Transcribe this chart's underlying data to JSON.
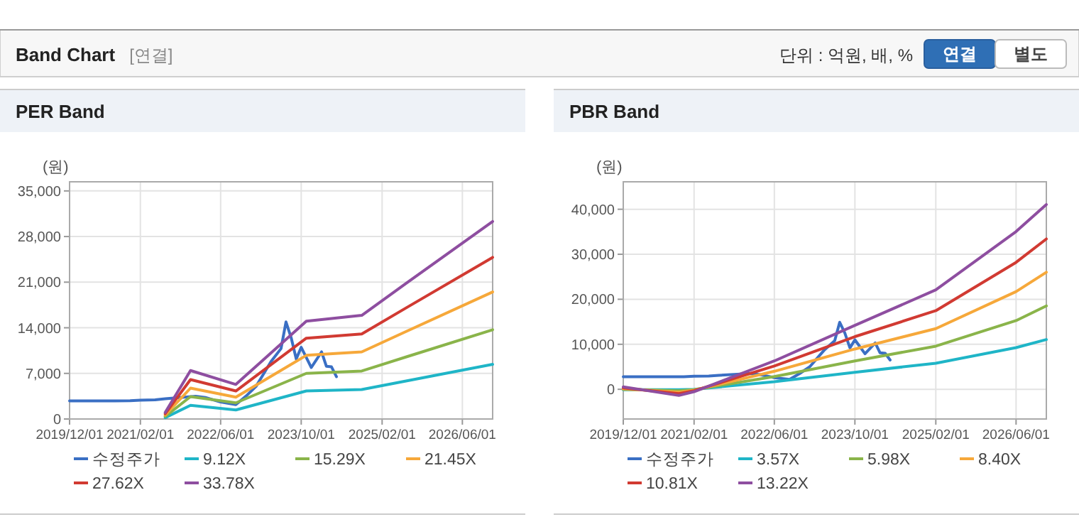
{
  "chart_data": [
    {
      "type": "other",
      "title": "Band Chart",
      "annotations": [
        "[연결]",
        "단위 : 억원, 배, %",
        "연결",
        "별도"
      ]
    },
    {
      "type": "line",
      "title": "PER Band",
      "ylabel": "(원)",
      "xlim": [
        "2019-12-01",
        "2026-12-01"
      ],
      "ylim": [
        0,
        36400
      ],
      "xticks": [
        {
          "value": "2019-12-01",
          "label": "2019/12/01"
        },
        {
          "value": "2021-02-01",
          "label": "2021/02/01"
        },
        {
          "value": "2022-06-01",
          "label": "2022/06/01"
        },
        {
          "value": "2023-10-01",
          "label": "2023/10/01"
        },
        {
          "value": "2025-02-01",
          "label": "2025/02/01"
        },
        {
          "value": "2026-06-01",
          "label": "2026/06/01"
        }
      ],
      "yticks": [
        0,
        {
          "value": 7000,
          "label": "7,000"
        },
        {
          "value": 14000,
          "label": "14,000"
        },
        {
          "value": 21000,
          "label": "21,000"
        },
        {
          "value": 28000,
          "label": "28,000"
        },
        {
          "value": 35000,
          "label": "35,000"
        }
      ],
      "grid": true,
      "legend": "bottom",
      "series": [
        {
          "name": "수정주가",
          "color": "#3a6fc4",
          "x": [
            "2019-12-01",
            "2020-03-01",
            "2020-06-01",
            "2020-09-01",
            "2020-12-01",
            "2021-02-01",
            "2021-05-01",
            "2021-07-01",
            "2021-10-01",
            "2022-01-01",
            "2022-03-01",
            "2022-06-01",
            "2022-09-01",
            "2022-11-01",
            "2023-01-01",
            "2023-03-01",
            "2023-04-01",
            "2023-06-01",
            "2023-07-01",
            "2023-08-01",
            "2023-09-01",
            "2023-10-01",
            "2023-12-01",
            "2024-02-01",
            "2024-03-01",
            "2024-04-01",
            "2024-05-01"
          ],
          "values": [
            2770,
            2770,
            2770,
            2780,
            2800,
            2900,
            2950,
            3100,
            3300,
            3500,
            3300,
            2600,
            2200,
            3500,
            5000,
            7500,
            8800,
            10800,
            14900,
            12500,
            9200,
            11000,
            7900,
            10300,
            8100,
            8000,
            6500
          ]
        },
        {
          "name": "9.12X",
          "color": "#1fb5c7",
          "x": [
            "2021-07-01",
            "2021-12-01",
            "2022-09-01",
            "2023-11-01",
            "2024-10-01",
            "2025-07-01",
            "2026-12-01"
          ],
          "values": [
            200,
            2100,
            1390,
            4300,
            4520,
            5860,
            8390
          ]
        },
        {
          "name": "15.29X",
          "color": "#8ab44a",
          "x": [
            "2021-07-01",
            "2021-12-01",
            "2022-09-01",
            "2023-11-01",
            "2024-10-01",
            "2025-07-01",
            "2026-12-01"
          ],
          "values": [
            400,
            3430,
            2480,
            7000,
            7370,
            9560,
            13700
          ]
        },
        {
          "name": "21.45X",
          "color": "#f6a83a",
          "x": [
            "2021-07-01",
            "2021-12-01",
            "2022-09-01",
            "2023-11-01",
            "2024-10-01",
            "2025-07-01",
            "2026-12-01"
          ],
          "values": [
            600,
            4740,
            3350,
            9770,
            10300,
            13480,
            19500
          ]
        },
        {
          "name": "27.62X",
          "color": "#d13a32",
          "x": [
            "2021-07-01",
            "2021-12-01",
            "2022-09-01",
            "2023-11-01",
            "2024-10-01",
            "2025-07-01",
            "2026-12-01"
          ],
          "values": [
            800,
            6050,
            4300,
            12400,
            13050,
            17120,
            24800
          ]
        },
        {
          "name": "33.78X",
          "color": "#8e4ea0",
          "x": [
            "2021-07-01",
            "2021-12-01",
            "2022-09-01",
            "2023-11-01",
            "2024-10-01",
            "2025-07-01",
            "2026-12-01"
          ],
          "values": [
            1000,
            7440,
            5300,
            15000,
            15900,
            20900,
            30300
          ]
        }
      ]
    },
    {
      "type": "line",
      "title": "PBR Band",
      "ylabel": "(원)",
      "xlim": [
        "2019-12-01",
        "2026-12-01"
      ],
      "ylim": [
        -6600,
        46100
      ],
      "xticks": [
        {
          "value": "2019-12-01",
          "label": "2019/12/01"
        },
        {
          "value": "2021-02-01",
          "label": "2021/02/01"
        },
        {
          "value": "2022-06-01",
          "label": "2022/06/01"
        },
        {
          "value": "2023-10-01",
          "label": "2023/10/01"
        },
        {
          "value": "2025-02-01",
          "label": "2025/02/01"
        },
        {
          "value": "2026-06-01",
          "label": "2026/06/01"
        }
      ],
      "yticks": [
        0,
        {
          "value": 10000,
          "label": "10,000"
        },
        {
          "value": 20000,
          "label": "20,000"
        },
        {
          "value": 30000,
          "label": "30,000"
        },
        {
          "value": 40000,
          "label": "40,000"
        }
      ],
      "grid": true,
      "legend": "bottom",
      "series": [
        {
          "name": "수정주가",
          "color": "#3a6fc4",
          "x": [
            "2019-12-01",
            "2020-03-01",
            "2020-06-01",
            "2020-09-01",
            "2020-12-01",
            "2021-02-01",
            "2021-05-01",
            "2021-07-01",
            "2021-10-01",
            "2022-01-01",
            "2022-03-01",
            "2022-06-01",
            "2022-09-01",
            "2022-11-01",
            "2023-01-01",
            "2023-03-01",
            "2023-04-01",
            "2023-06-01",
            "2023-07-01",
            "2023-08-01",
            "2023-09-01",
            "2023-10-01",
            "2023-12-01",
            "2024-02-01",
            "2024-03-01",
            "2024-04-01",
            "2024-05-01"
          ],
          "values": [
            2770,
            2770,
            2770,
            2780,
            2800,
            2900,
            2950,
            3100,
            3300,
            3500,
            3300,
            2600,
            2200,
            3500,
            5000,
            7500,
            8800,
            10800,
            14900,
            12500,
            9200,
            11000,
            7900,
            10300,
            8100,
            8000,
            6500
          ]
        },
        {
          "name": "3.57X",
          "color": "#1fb5c7",
          "x": [
            "2019-12-01",
            "2020-11-01",
            "2021-02-01",
            "2022-06-01",
            "2023-10-01",
            "2025-02-01",
            "2026-06-01",
            "2026-12-01"
          ],
          "values": [
            -100,
            -100,
            0,
            1680,
            3790,
            5790,
            9260,
            11050
          ]
        },
        {
          "name": "5.98X",
          "color": "#8ab44a",
          "x": [
            "2019-12-01",
            "2020-11-01",
            "2021-02-01",
            "2022-06-01",
            "2023-10-01",
            "2025-02-01",
            "2026-06-01",
            "2026-12-01"
          ],
          "values": [
            0,
            -320,
            -100,
            2840,
            6300,
            9580,
            15260,
            18530
          ]
        },
        {
          "name": "8.40X",
          "color": "#f6a83a",
          "x": [
            "2019-12-01",
            "2020-11-01",
            "2021-02-01",
            "2022-06-01",
            "2023-10-01",
            "2025-02-01",
            "2026-06-01",
            "2026-12-01"
          ],
          "values": [
            100,
            -630,
            -210,
            4000,
            8950,
            13470,
            21700,
            26000
          ]
        },
        {
          "name": "10.81X",
          "color": "#d13a32",
          "x": [
            "2019-12-01",
            "2020-11-01",
            "2021-02-01",
            "2022-06-01",
            "2023-10-01",
            "2025-02-01",
            "2026-06-01",
            "2026-12-01"
          ],
          "values": [
            320,
            -950,
            -320,
            5160,
            11700,
            17470,
            28200,
            33400
          ]
        },
        {
          "name": "13.22X",
          "color": "#8e4ea0",
          "x": [
            "2019-12-01",
            "2020-11-01",
            "2021-02-01",
            "2022-06-01",
            "2023-10-01",
            "2025-02-01",
            "2026-06-01",
            "2026-12-01"
          ],
          "values": [
            530,
            -1370,
            -530,
            6300,
            14200,
            22100,
            35050,
            41050
          ]
        }
      ]
    }
  ]
}
